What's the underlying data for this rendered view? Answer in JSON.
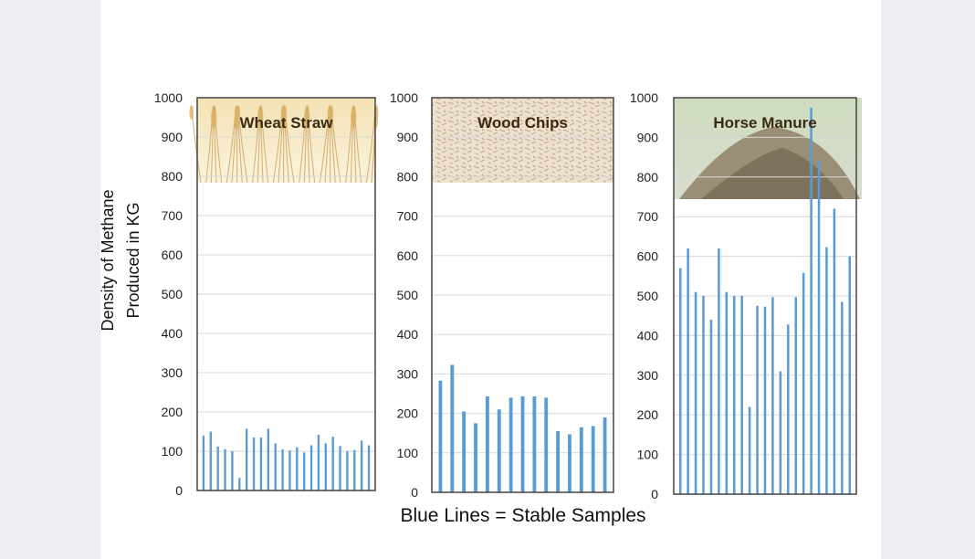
{
  "chart_data": {
    "type": "bar",
    "ylabel_lines": [
      "Density of Methane",
      "Produced in KG"
    ],
    "caption": "Blue Lines = Stable Samples",
    "ylim": [
      0,
      1000
    ],
    "yticks": [
      "0",
      "100",
      "200",
      "300",
      "400",
      "500",
      "600",
      "700",
      "800",
      "900",
      "1000"
    ],
    "bar_color": "#5b9bd5",
    "grid": true,
    "panels": [
      {
        "title": "Wheat Straw",
        "image": "wheat-straw-photo",
        "values": [
          140,
          150,
          112,
          105,
          100,
          32,
          157,
          135,
          135,
          157,
          120,
          105,
          102,
          110,
          97,
          115,
          142,
          120,
          137,
          113,
          100,
          103,
          127,
          115
        ]
      },
      {
        "title": "Wood Chips",
        "image": "wood-chips-photo",
        "values": [
          283,
          323,
          205,
          175,
          243,
          210,
          240,
          243,
          243,
          240,
          155,
          147,
          165,
          168,
          190
        ]
      },
      {
        "title": "Horse Manure",
        "image": "horse-manure-photo",
        "values": [
          570,
          620,
          510,
          500,
          440,
          620,
          510,
          500,
          500,
          220,
          475,
          473,
          497,
          310,
          428,
          497,
          558,
          975,
          840,
          623,
          720,
          485,
          600
        ]
      }
    ]
  }
}
